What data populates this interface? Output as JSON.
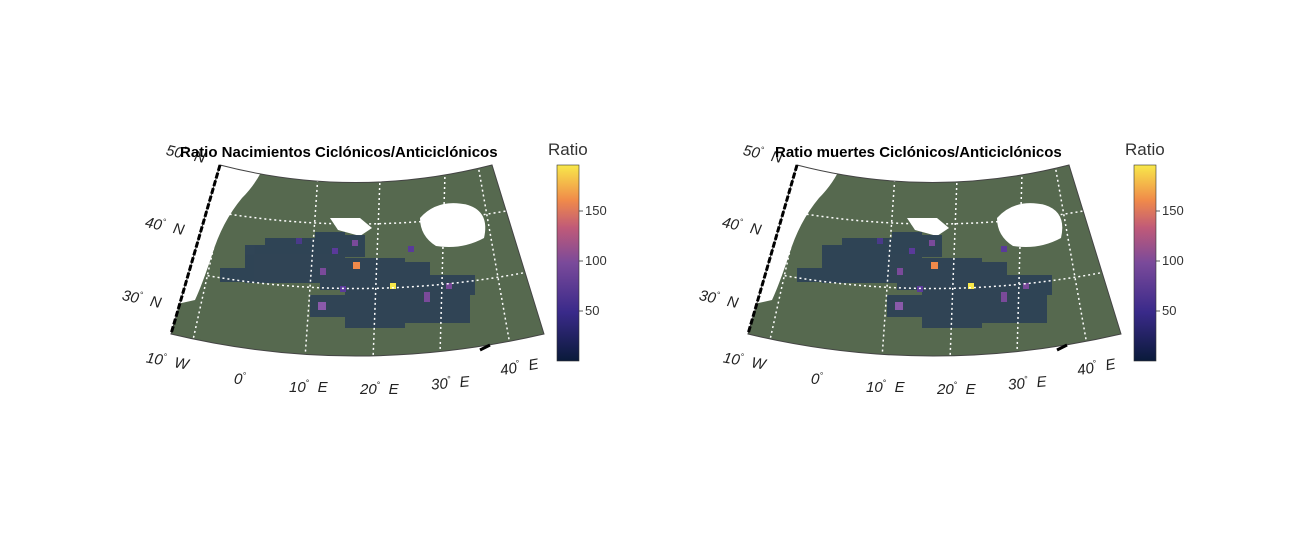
{
  "panels": [
    {
      "id": "births",
      "title": "Ratio Nacimientos Ciclónicos/Anticiclónicos",
      "colorbar": {
        "title": "Ratio",
        "ticks": [
          "50",
          "100",
          "150"
        ]
      },
      "lat_labels": [
        {
          "deg": "50",
          "hem": "N"
        },
        {
          "deg": "40",
          "hem": "N"
        },
        {
          "deg": "30",
          "hem": "N"
        }
      ],
      "lon_labels": [
        {
          "deg": "10",
          "hem": "W"
        },
        {
          "deg": "0",
          "hem": ""
        },
        {
          "deg": "10",
          "hem": "E"
        },
        {
          "deg": "20",
          "hem": "E"
        },
        {
          "deg": "30",
          "hem": "E"
        },
        {
          "deg": "40",
          "hem": "E"
        }
      ]
    },
    {
      "id": "deaths",
      "title": "Ratio muertes Ciclónicos/Anticiclónicos",
      "colorbar": {
        "title": "Ratio",
        "ticks": [
          "50",
          "100",
          "150"
        ]
      },
      "lat_labels": [
        {
          "deg": "50",
          "hem": "N"
        },
        {
          "deg": "40",
          "hem": "N"
        },
        {
          "deg": "30",
          "hem": "N"
        }
      ],
      "lon_labels": [
        {
          "deg": "10",
          "hem": "W"
        },
        {
          "deg": "0",
          "hem": ""
        },
        {
          "deg": "10",
          "hem": "E"
        },
        {
          "deg": "20",
          "hem": "E"
        },
        {
          "deg": "30",
          "hem": "E"
        },
        {
          "deg": "40",
          "hem": "E"
        }
      ]
    }
  ],
  "colors": {
    "land": "#56694f",
    "sea_cells": "#2e4356",
    "water": "#ffffff",
    "colormap": [
      "#0a1a3a",
      "#3a2a8a",
      "#7a4a9a",
      "#c05a78",
      "#f08a4a",
      "#f8e84a"
    ]
  },
  "colorbar_range": [
    0,
    195
  ]
}
